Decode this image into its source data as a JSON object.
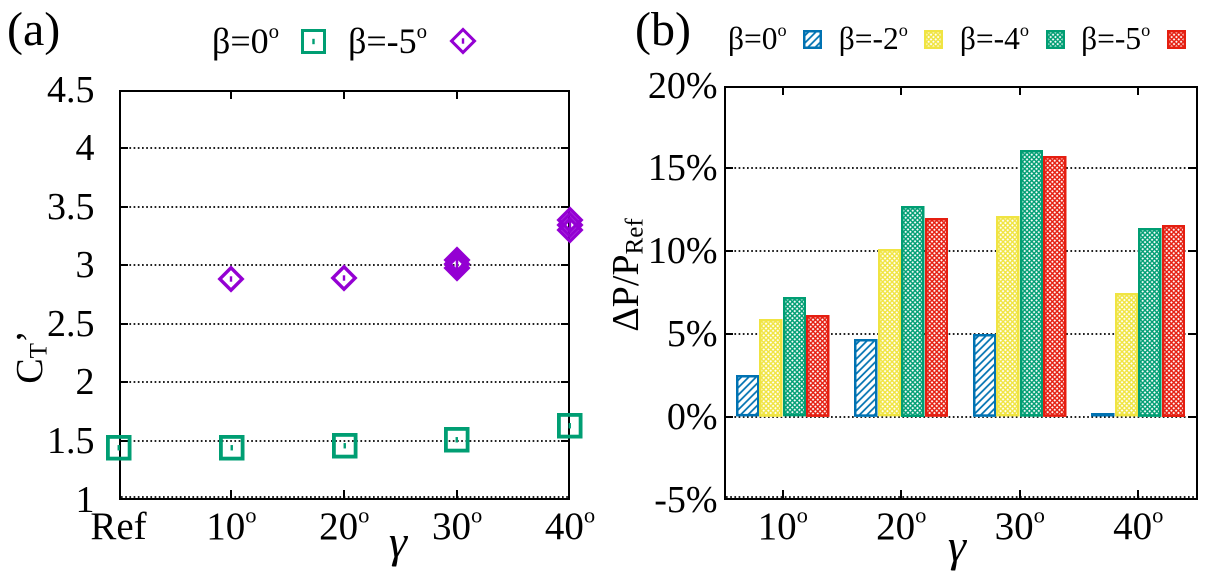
{
  "figure": {
    "background": "#ffffff",
    "text_color": "#000000",
    "panels": [
      {
        "tag": "(a)"
      },
      {
        "tag": "(b)"
      }
    ]
  },
  "chart_data": [
    {
      "type": "scatter",
      "panel_label": "(a)",
      "xlabel": "γ",
      "ylabel": "C_T'",
      "ylabel_segments": [
        {
          "t": "C"
        },
        {
          "t": "T",
          "s": "sub"
        },
        {
          "t": "’"
        }
      ],
      "x_categories": [
        "Ref",
        "10°",
        "20°",
        "30°",
        "40°"
      ],
      "xtick_labels": [
        {
          "text": "Ref"
        },
        {
          "text": "10",
          "sup": "o"
        },
        {
          "text": "20",
          "sup": "o"
        },
        {
          "text": "30",
          "sup": "o"
        },
        {
          "text": "40",
          "sup": "o"
        }
      ],
      "ylim": [
        1,
        4.5
      ],
      "yticks": [
        1,
        1.5,
        2,
        2.5,
        3,
        3.5,
        4,
        4.5
      ],
      "ytick_labels": [
        "1",
        "1.5",
        "2",
        "2.5",
        "3",
        "3.5",
        "4",
        "4.5"
      ],
      "grid": "horizontal-dotted",
      "legend_position": "top-center",
      "legend": [
        {
          "label": {
            "text": "β=0",
            "sup": "o"
          },
          "marker": "square",
          "color": "#009E73"
        },
        {
          "label": {
            "text": "β=-5",
            "sup": "o"
          },
          "marker": "diamond",
          "color": "#9400D3"
        }
      ],
      "series": [
        {
          "name": "β=0°",
          "marker": "square",
          "color": "#009E73",
          "points": [
            {
              "x": "Ref",
              "y": 1.44
            },
            {
              "x": "10°",
              "y": 1.44
            },
            {
              "x": "20°",
              "y": 1.46
            },
            {
              "x": "30°",
              "y": 1.51
            },
            {
              "x": "40°",
              "y": 1.63
            }
          ]
        },
        {
          "name": "β=-5°",
          "marker": "diamond",
          "color": "#9400D3",
          "points": [
            {
              "x": "10°",
              "y": 2.88
            },
            {
              "x": "20°",
              "y": 2.89
            },
            {
              "x": "30°",
              "y": 2.975
            },
            {
              "x": "30°",
              "y": 3.01
            },
            {
              "x": "30°",
              "y": 3.045
            },
            {
              "x": "40°",
              "y": 3.3
            },
            {
              "x": "40°",
              "y": 3.345
            },
            {
              "x": "40°",
              "y": 3.39
            }
          ]
        }
      ]
    },
    {
      "type": "bar",
      "panel_label": "(b)",
      "xlabel": "γ",
      "ylabel": "ΔP/P_Ref",
      "ylabel_segments": [
        {
          "t": "ΔP/P"
        },
        {
          "t": "Ref",
          "s": "sub"
        }
      ],
      "categories": [
        "10°",
        "20°",
        "30°",
        "40°"
      ],
      "xtick_labels": [
        {
          "text": "10",
          "sup": "o"
        },
        {
          "text": "20",
          "sup": "o"
        },
        {
          "text": "30",
          "sup": "o"
        },
        {
          "text": "40",
          "sup": "o"
        }
      ],
      "ylim": [
        -5,
        20
      ],
      "yticks": [
        -5,
        0,
        5,
        10,
        15,
        20
      ],
      "ytick_labels": [
        "-5%",
        "0%",
        "5%",
        "10%",
        "15%",
        "20%"
      ],
      "unit": "%",
      "grid": "horizontal-dotted",
      "legend_position": "top-center",
      "legend": [
        {
          "label": {
            "text": "β=0",
            "sup": "o"
          },
          "swatch": "diagonal",
          "color": "#0072B2"
        },
        {
          "label": {
            "text": "β=-2",
            "sup": "o"
          },
          "swatch": "crosshatch",
          "color": "#F0E442"
        },
        {
          "label": {
            "text": "β=-4",
            "sup": "o"
          },
          "swatch": "crosshatch",
          "color": "#009E73"
        },
        {
          "label": {
            "text": "β=-5",
            "sup": "o"
          },
          "swatch": "crosshatch",
          "color": "#E51E10"
        }
      ],
      "series": [
        {
          "name": "β=0°",
          "color": "#0072B2",
          "pattern": "diagonal",
          "values": [
            2.5,
            4.7,
            5.0,
            0.1
          ]
        },
        {
          "name": "β=-2°",
          "color": "#F0E442",
          "pattern": "crosshatch",
          "values": [
            5.9,
            10.1,
            12.1,
            7.45
          ]
        },
        {
          "name": "β=-4°",
          "color": "#009E73",
          "pattern": "crosshatch",
          "values": [
            7.2,
            12.75,
            16.1,
            11.4
          ]
        },
        {
          "name": "β=-5°",
          "color": "#E51E10",
          "pattern": "crosshatch",
          "values": [
            6.15,
            12.0,
            15.75,
            11.6
          ]
        }
      ]
    }
  ]
}
